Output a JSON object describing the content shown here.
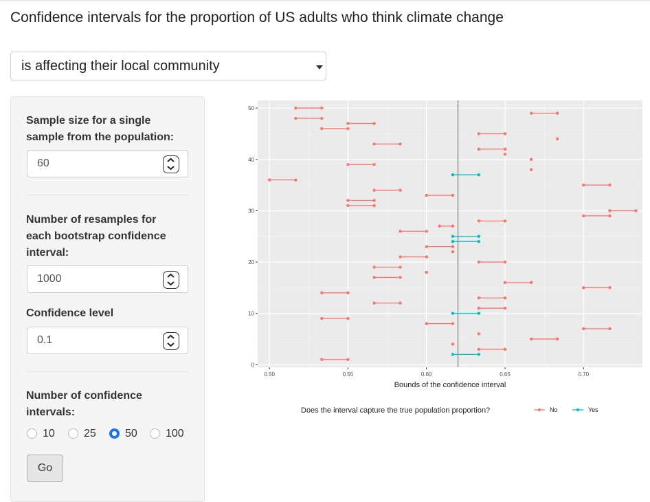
{
  "page": {
    "title": "Confidence intervals for the proportion of US adults who think climate change"
  },
  "statement_select": {
    "value": "is affecting their local community"
  },
  "controls": {
    "sample_size": {
      "label_line1": "Sample size for a single",
      "label_line2": "sample from the population:",
      "value": "60"
    },
    "resamples": {
      "label_line1": "Number of resamples for",
      "label_line2": "each bootstrap confidence",
      "label_line3": "interval:",
      "value": "1000"
    },
    "confidence_level": {
      "label": "Confidence level",
      "value": "0.1"
    },
    "num_intervals": {
      "label_line1": "Number of confidence",
      "label_line2": "intervals:",
      "options": [
        "10",
        "25",
        "50",
        "100"
      ],
      "selected": "50"
    },
    "go_label": "Go"
  },
  "chart_data": {
    "type": "interval",
    "xlabel": "Bounds of the confidence interval",
    "ylabel": "",
    "xlim": [
      0.4925,
      0.7375
    ],
    "ylim": [
      -0.5,
      51.5
    ],
    "x_ticks": [
      "0.50",
      "0.55",
      "0.60",
      "0.65",
      "0.70"
    ],
    "x_tick_values": [
      0.5,
      0.55,
      0.6,
      0.65,
      0.7
    ],
    "y_ticks": [
      "0",
      "10",
      "20",
      "30",
      "40",
      "50"
    ],
    "y_tick_values": [
      0,
      10,
      20,
      30,
      40,
      50
    ],
    "true_proportion": 0.62,
    "legend_title": "Does the interval capture the true population proportion?",
    "legend": [
      {
        "label": "No",
        "color": "#F8766D"
      },
      {
        "label": "Yes",
        "color": "#00BFC4"
      }
    ],
    "intervals": [
      {
        "id": 1,
        "lower": 0.5333,
        "upper": 0.55,
        "captured": "No"
      },
      {
        "id": 2,
        "lower": 0.6167,
        "upper": 0.6333,
        "captured": "Yes"
      },
      {
        "id": 3,
        "lower": 0.6333,
        "upper": 0.65,
        "captured": "No"
      },
      {
        "id": 4,
        "lower": 0.6167,
        "upper": 0.6167,
        "captured": "No"
      },
      {
        "id": 5,
        "lower": 0.6667,
        "upper": 0.6833,
        "captured": "No"
      },
      {
        "id": 6,
        "lower": 0.6333,
        "upper": 0.6333,
        "captured": "No"
      },
      {
        "id": 7,
        "lower": 0.7,
        "upper": 0.7167,
        "captured": "No"
      },
      {
        "id": 8,
        "lower": 0.6,
        "upper": 0.6167,
        "captured": "No"
      },
      {
        "id": 9,
        "lower": 0.5333,
        "upper": 0.55,
        "captured": "No"
      },
      {
        "id": 10,
        "lower": 0.6167,
        "upper": 0.6333,
        "captured": "Yes"
      },
      {
        "id": 11,
        "lower": 0.6333,
        "upper": 0.65,
        "captured": "No"
      },
      {
        "id": 12,
        "lower": 0.5667,
        "upper": 0.5833,
        "captured": "No"
      },
      {
        "id": 13,
        "lower": 0.6333,
        "upper": 0.65,
        "captured": "No"
      },
      {
        "id": 14,
        "lower": 0.5333,
        "upper": 0.55,
        "captured": "No"
      },
      {
        "id": 15,
        "lower": 0.7,
        "upper": 0.7167,
        "captured": "No"
      },
      {
        "id": 16,
        "lower": 0.65,
        "upper": 0.6667,
        "captured": "No"
      },
      {
        "id": 17,
        "lower": 0.5667,
        "upper": 0.5833,
        "captured": "No"
      },
      {
        "id": 18,
        "lower": 0.6,
        "upper": 0.6,
        "captured": "No"
      },
      {
        "id": 19,
        "lower": 0.5667,
        "upper": 0.5833,
        "captured": "No"
      },
      {
        "id": 20,
        "lower": 0.6333,
        "upper": 0.65,
        "captured": "No"
      },
      {
        "id": 21,
        "lower": 0.5833,
        "upper": 0.6,
        "captured": "No"
      },
      {
        "id": 22,
        "lower": 0.6167,
        "upper": 0.6167,
        "captured": "No"
      },
      {
        "id": 23,
        "lower": 0.6,
        "upper": 0.6167,
        "captured": "No"
      },
      {
        "id": 24,
        "lower": 0.6167,
        "upper": 0.6333,
        "captured": "Yes"
      },
      {
        "id": 25,
        "lower": 0.6167,
        "upper": 0.6333,
        "captured": "Yes"
      },
      {
        "id": 26,
        "lower": 0.5833,
        "upper": 0.6,
        "captured": "No"
      },
      {
        "id": 27,
        "lower": 0.6083,
        "upper": 0.6167,
        "captured": "No"
      },
      {
        "id": 28,
        "lower": 0.6333,
        "upper": 0.65,
        "captured": "No"
      },
      {
        "id": 29,
        "lower": 0.7,
        "upper": 0.7167,
        "captured": "No"
      },
      {
        "id": 30,
        "lower": 0.7167,
        "upper": 0.7333,
        "captured": "No"
      },
      {
        "id": 31,
        "lower": 0.55,
        "upper": 0.5667,
        "captured": "No"
      },
      {
        "id": 32,
        "lower": 0.55,
        "upper": 0.5667,
        "captured": "No"
      },
      {
        "id": 33,
        "lower": 0.6,
        "upper": 0.6167,
        "captured": "No"
      },
      {
        "id": 34,
        "lower": 0.5667,
        "upper": 0.5833,
        "captured": "No"
      },
      {
        "id": 35,
        "lower": 0.7,
        "upper": 0.7167,
        "captured": "No"
      },
      {
        "id": 36,
        "lower": 0.5,
        "upper": 0.5167,
        "captured": "No"
      },
      {
        "id": 37,
        "lower": 0.6167,
        "upper": 0.6333,
        "captured": "Yes"
      },
      {
        "id": 38,
        "lower": 0.6667,
        "upper": 0.6667,
        "captured": "No"
      },
      {
        "id": 39,
        "lower": 0.55,
        "upper": 0.5667,
        "captured": "No"
      },
      {
        "id": 40,
        "lower": 0.6667,
        "upper": 0.6667,
        "captured": "No"
      },
      {
        "id": 41,
        "lower": 0.65,
        "upper": 0.65,
        "captured": "No"
      },
      {
        "id": 42,
        "lower": 0.6333,
        "upper": 0.65,
        "captured": "No"
      },
      {
        "id": 43,
        "lower": 0.5667,
        "upper": 0.5833,
        "captured": "No"
      },
      {
        "id": 44,
        "lower": 0.6833,
        "upper": 0.6833,
        "captured": "No"
      },
      {
        "id": 45,
        "lower": 0.6333,
        "upper": 0.65,
        "captured": "No"
      },
      {
        "id": 46,
        "lower": 0.5333,
        "upper": 0.55,
        "captured": "No"
      },
      {
        "id": 47,
        "lower": 0.55,
        "upper": 0.5667,
        "captured": "No"
      },
      {
        "id": 48,
        "lower": 0.5167,
        "upper": 0.5333,
        "captured": "No"
      },
      {
        "id": 49,
        "lower": 0.6667,
        "upper": 0.6833,
        "captured": "No"
      },
      {
        "id": 50,
        "lower": 0.5167,
        "upper": 0.5333,
        "captured": "No"
      }
    ]
  }
}
